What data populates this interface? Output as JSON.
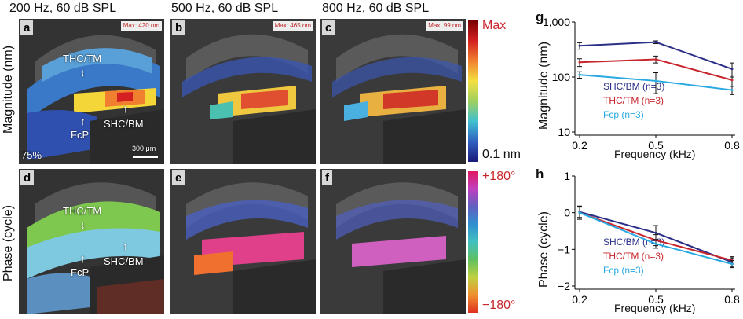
{
  "columns": [
    "200 Hz, 60 dB SPL",
    "500 Hz, 60 dB SPL",
    "800 Hz, 60 dB SPL"
  ],
  "rows": {
    "magnitude": "Magnitude (nm)",
    "phase": "Phase (cycle)"
  },
  "panels": {
    "a": {
      "letter": "a",
      "max": "Max: 420 nm"
    },
    "b": {
      "letter": "b",
      "max": "Max: 465 nm"
    },
    "c": {
      "letter": "c",
      "max": "Max: 99 nm"
    },
    "d": {
      "letter": "d"
    },
    "e": {
      "letter": "e"
    },
    "f": {
      "letter": "f"
    }
  },
  "annotations": {
    "thc_tm": "THC/TM",
    "fcp": "FcP",
    "shc_bm": "SHC/BM",
    "percent": "75%",
    "scale": "300 μm"
  },
  "colorbars": {
    "mag_top": "Max",
    "mag_bottom": "0.1 nm",
    "phase_top": "+180°",
    "phase_bottom": "−180°"
  },
  "colors": {
    "shc_bm": "#2b2f86",
    "thc_tm": "#c8262d",
    "fcp": "#27a9e1",
    "red_text": "#c8262d"
  },
  "chart_data": [
    {
      "id": "g",
      "type": "line",
      "letter": "g",
      "xlabel": "Frequency (kHz)",
      "ylabel": "Magnitude (nm)",
      "x": [
        0.2,
        0.5,
        0.8
      ],
      "xticks": [
        "0.2",
        "0.5",
        "0.8"
      ],
      "yscale": "log",
      "yticks": [
        "1,000",
        "100",
        "10"
      ],
      "ylim": [
        10,
        1000
      ],
      "series": [
        {
          "name": "SHC/BM",
          "n": "(n=3)",
          "values": [
            370,
            430,
            140
          ],
          "err": [
            50,
            25,
            40
          ]
        },
        {
          "name": "THC/TM",
          "n": "(n=3)",
          "values": [
            185,
            210,
            88
          ],
          "err": [
            30,
            30,
            20
          ]
        },
        {
          "name": "Fcp",
          "n": "(n=3)",
          "values": [
            110,
            85,
            58
          ],
          "err": [
            15,
            35,
            10
          ]
        }
      ]
    },
    {
      "id": "h",
      "type": "line",
      "letter": "h",
      "xlabel": "Frequency (kHz)",
      "ylabel": "Phase (cycle)",
      "x": [
        0.2,
        0.5,
        0.8
      ],
      "xticks": [
        "0.2",
        "0.5",
        "0.8"
      ],
      "yticks": [
        "1",
        "0",
        "−1",
        "−2"
      ],
      "ylim": [
        -2,
        1
      ],
      "series": [
        {
          "name": "SHC/BM",
          "n": "(n=3)",
          "values": [
            0.02,
            -0.55,
            -1.35
          ],
          "err": [
            0.15,
            0.2,
            0.12
          ]
        },
        {
          "name": "THC/TM",
          "n": "(n=3)",
          "values": [
            0.0,
            -0.75,
            -1.3
          ],
          "err": [
            0.18,
            0.15,
            0.1
          ]
        },
        {
          "name": "Fcp",
          "n": "(n=3)",
          "values": [
            0.0,
            -0.85,
            -1.4
          ],
          "err": [
            0.15,
            0.12,
            0.1
          ]
        }
      ]
    }
  ]
}
